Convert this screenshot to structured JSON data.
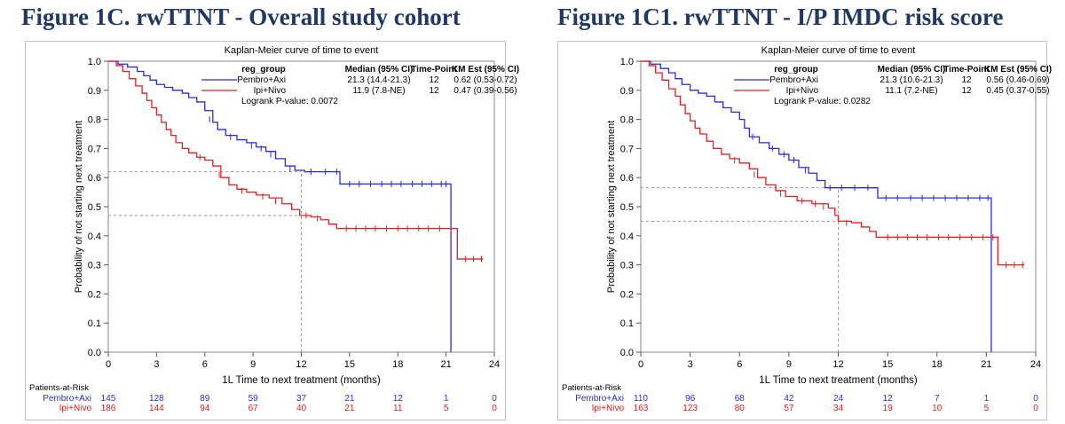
{
  "chart_data": [
    {
      "type": "line",
      "figure_title": "Figure 1C. rwTTNT - Overall study cohort",
      "title": "Kaplan-Meier curve of time to event",
      "xlabel": "1L Time to next treatment (months)",
      "ylabel": "Probability of not starting next treatment",
      "xlim": [
        0,
        24
      ],
      "ylim": [
        0,
        1.0
      ],
      "xticks": [
        "0",
        "3",
        "6",
        "9",
        "12",
        "15",
        "18",
        "21",
        "24"
      ],
      "yticks": [
        "0.0",
        "0.1",
        "0.2",
        "0.3",
        "0.4",
        "0.5",
        "0.6",
        "0.7",
        "0.8",
        "0.9",
        "1.0"
      ],
      "legend": {
        "headers": [
          "reg_group",
          "Median (95% CI)",
          "Time-Point",
          "KM Est (95% CI)"
        ],
        "rows": [
          {
            "group": "Pembro+Axi",
            "median": "21.3 (14.4-21.3)",
            "timepoint": "12",
            "km": "0.62 (0.53-0.72)"
          },
          {
            "group": "Ipi+Nivo",
            "median": "11.9 (7.8-NE)",
            "timepoint": "12",
            "km": "0.47 (0.39-0.56)"
          }
        ],
        "pvalue": "Logrank P-value: 0.0072"
      },
      "reference_lines": {
        "x": 12,
        "y": [
          0.62,
          0.47
        ]
      },
      "series": [
        {
          "name": "Pembro+Axi",
          "color": "#2a2ae0",
          "points": [
            [
              0,
              1.0
            ],
            [
              0.6,
              0.99
            ],
            [
              1.2,
              0.98
            ],
            [
              1.8,
              0.965
            ],
            [
              2.2,
              0.95
            ],
            [
              2.6,
              0.935
            ],
            [
              3.0,
              0.92
            ],
            [
              3.5,
              0.91
            ],
            [
              4.0,
              0.9
            ],
            [
              4.6,
              0.89
            ],
            [
              5.0,
              0.875
            ],
            [
              5.5,
              0.86
            ],
            [
              6.0,
              0.83
            ],
            [
              6.5,
              0.79
            ],
            [
              6.8,
              0.765
            ],
            [
              7.3,
              0.745
            ],
            [
              8.0,
              0.73
            ],
            [
              8.6,
              0.72
            ],
            [
              9.2,
              0.705
            ],
            [
              9.8,
              0.69
            ],
            [
              10.4,
              0.665
            ],
            [
              11.0,
              0.64
            ],
            [
              11.6,
              0.625
            ],
            [
              12.2,
              0.62
            ],
            [
              13.0,
              0.62
            ],
            [
              14.3,
              0.62
            ],
            [
              14.4,
              0.578
            ],
            [
              21.3,
              0.578
            ],
            [
              21.3,
              0.0
            ]
          ],
          "censor": [
            [
              6.3,
              0.8
            ],
            [
              7.6,
              0.74
            ],
            [
              8.9,
              0.71
            ],
            [
              9.5,
              0.7
            ],
            [
              10.1,
              0.68
            ],
            [
              11.3,
              0.63
            ],
            [
              12.6,
              0.62
            ],
            [
              13.5,
              0.62
            ],
            [
              14.2,
              0.62
            ],
            [
              15.0,
              0.578
            ],
            [
              15.6,
              0.578
            ],
            [
              16.3,
              0.578
            ],
            [
              17.0,
              0.578
            ],
            [
              17.6,
              0.578
            ],
            [
              18.2,
              0.578
            ],
            [
              18.9,
              0.578
            ],
            [
              19.5,
              0.578
            ],
            [
              20.1,
              0.578
            ],
            [
              20.7,
              0.578
            ],
            [
              21.0,
              0.578
            ]
          ],
          "risk": [
            "145",
            "128",
            "89",
            "59",
            "37",
            "21",
            "12",
            "1",
            "0"
          ]
        },
        {
          "name": "Ipi+Nivo",
          "color": "#e02020",
          "points": [
            [
              0,
              1.0
            ],
            [
              0.5,
              0.985
            ],
            [
              0.9,
              0.965
            ],
            [
              1.3,
              0.94
            ],
            [
              1.7,
              0.915
            ],
            [
              2.1,
              0.89
            ],
            [
              2.4,
              0.865
            ],
            [
              2.7,
              0.84
            ],
            [
              3.0,
              0.815
            ],
            [
              3.3,
              0.79
            ],
            [
              3.6,
              0.765
            ],
            [
              3.9,
              0.745
            ],
            [
              4.2,
              0.72
            ],
            [
              4.6,
              0.7
            ],
            [
              5.0,
              0.685
            ],
            [
              5.5,
              0.67
            ],
            [
              6.0,
              0.66
            ],
            [
              6.5,
              0.64
            ],
            [
              7.0,
              0.6
            ],
            [
              7.5,
              0.575
            ],
            [
              8.0,
              0.56
            ],
            [
              8.6,
              0.55
            ],
            [
              9.2,
              0.54
            ],
            [
              10.0,
              0.53
            ],
            [
              10.8,
              0.51
            ],
            [
              11.4,
              0.49
            ],
            [
              11.9,
              0.47
            ],
            [
              12.6,
              0.465
            ],
            [
              13.2,
              0.455
            ],
            [
              13.7,
              0.44
            ],
            [
              14.2,
              0.425
            ],
            [
              21.7,
              0.425
            ],
            [
              21.7,
              0.32
            ],
            [
              23.3,
              0.32
            ]
          ],
          "censor": [
            [
              5.7,
              0.67
            ],
            [
              6.9,
              0.61
            ],
            [
              8.3,
              0.555
            ],
            [
              9.6,
              0.535
            ],
            [
              10.4,
              0.52
            ],
            [
              12.3,
              0.47
            ],
            [
              13.0,
              0.46
            ],
            [
              14.8,
              0.425
            ],
            [
              15.4,
              0.425
            ],
            [
              16.0,
              0.425
            ],
            [
              16.6,
              0.425
            ],
            [
              17.3,
              0.425
            ],
            [
              18.0,
              0.425
            ],
            [
              18.6,
              0.425
            ],
            [
              19.3,
              0.425
            ],
            [
              19.9,
              0.425
            ],
            [
              20.6,
              0.425
            ],
            [
              21.3,
              0.425
            ],
            [
              22.2,
              0.32
            ],
            [
              22.7,
              0.32
            ],
            [
              23.2,
              0.32
            ]
          ],
          "risk": [
            "186",
            "144",
            "94",
            "67",
            "40",
            "21",
            "11",
            "5",
            "0"
          ]
        }
      ],
      "risk_header": "Patients-at-Risk"
    },
    {
      "type": "line",
      "figure_title": "Figure 1C1. rwTTNT - I/P IMDC risk score",
      "title": "Kaplan-Meier curve of time to event",
      "xlabel": "1L Time to next treatment (months)",
      "ylabel": "Probability of not starting next treatment",
      "xlim": [
        0,
        24
      ],
      "ylim": [
        0,
        1.0
      ],
      "xticks": [
        "0",
        "3",
        "6",
        "9",
        "12",
        "15",
        "18",
        "21",
        "24"
      ],
      "yticks": [
        "0.0",
        "0.1",
        "0.2",
        "0.3",
        "0.4",
        "0.5",
        "0.6",
        "0.7",
        "0.8",
        "0.9",
        "1.0"
      ],
      "legend": {
        "headers": [
          "reg_group",
          "Median (95% CI)",
          "Time-Point",
          "KM Est (95% CI)"
        ],
        "rows": [
          {
            "group": "Pembro+Axi",
            "median": "21.3 (10.6-21.3)",
            "timepoint": "12",
            "km": "0.56 (0.46-0.69)"
          },
          {
            "group": "Ipi+Nivo",
            "median": "11.1 (7.2-NE)",
            "timepoint": "12",
            "km": "0.45 (0.37-0.55)"
          }
        ],
        "pvalue": "Logrank P-value: 0.0282"
      },
      "reference_lines": {
        "x": 12,
        "y": [
          0.565,
          0.45
        ]
      },
      "series": [
        {
          "name": "Pembro+Axi",
          "color": "#2a2ae0",
          "points": [
            [
              0,
              1.0
            ],
            [
              0.6,
              0.99
            ],
            [
              1.2,
              0.975
            ],
            [
              1.7,
              0.96
            ],
            [
              2.1,
              0.94
            ],
            [
              2.5,
              0.92
            ],
            [
              3.0,
              0.9
            ],
            [
              3.5,
              0.89
            ],
            [
              4.0,
              0.88
            ],
            [
              4.5,
              0.86
            ],
            [
              5.0,
              0.84
            ],
            [
              5.5,
              0.825
            ],
            [
              6.0,
              0.8
            ],
            [
              6.3,
              0.77
            ],
            [
              6.6,
              0.74
            ],
            [
              7.2,
              0.72
            ],
            [
              7.8,
              0.7
            ],
            [
              8.4,
              0.68
            ],
            [
              9.0,
              0.66
            ],
            [
              9.6,
              0.635
            ],
            [
              10.2,
              0.615
            ],
            [
              10.7,
              0.59
            ],
            [
              11.2,
              0.565
            ],
            [
              12.5,
              0.565
            ],
            [
              14.3,
              0.565
            ],
            [
              14.4,
              0.53
            ],
            [
              21.3,
              0.53
            ],
            [
              21.3,
              0.0
            ]
          ],
          "censor": [
            [
              6.8,
              0.74
            ],
            [
              8.0,
              0.7
            ],
            [
              8.7,
              0.68
            ],
            [
              9.3,
              0.66
            ],
            [
              10.0,
              0.625
            ],
            [
              11.5,
              0.565
            ],
            [
              12.2,
              0.565
            ],
            [
              13.0,
              0.565
            ],
            [
              13.8,
              0.565
            ],
            [
              14.9,
              0.53
            ],
            [
              15.6,
              0.53
            ],
            [
              16.4,
              0.53
            ],
            [
              17.1,
              0.53
            ],
            [
              17.8,
              0.53
            ],
            [
              18.5,
              0.53
            ],
            [
              19.2,
              0.53
            ],
            [
              19.9,
              0.53
            ],
            [
              20.6,
              0.53
            ],
            [
              21.1,
              0.53
            ]
          ],
          "risk": [
            "110",
            "96",
            "68",
            "42",
            "24",
            "12",
            "7",
            "1",
            "0"
          ]
        },
        {
          "name": "Ipi+Nivo",
          "color": "#e02020",
          "points": [
            [
              0,
              1.0
            ],
            [
              0.5,
              0.985
            ],
            [
              0.9,
              0.96
            ],
            [
              1.3,
              0.935
            ],
            [
              1.7,
              0.905
            ],
            [
              2.1,
              0.88
            ],
            [
              2.4,
              0.85
            ],
            [
              2.7,
              0.82
            ],
            [
              3.0,
              0.795
            ],
            [
              3.3,
              0.77
            ],
            [
              3.6,
              0.75
            ],
            [
              4.0,
              0.725
            ],
            [
              4.4,
              0.7
            ],
            [
              4.9,
              0.68
            ],
            [
              5.4,
              0.665
            ],
            [
              6.0,
              0.65
            ],
            [
              6.6,
              0.63
            ],
            [
              7.1,
              0.6
            ],
            [
              7.6,
              0.575
            ],
            [
              8.2,
              0.555
            ],
            [
              8.8,
              0.535
            ],
            [
              9.5,
              0.52
            ],
            [
              10.4,
              0.51
            ],
            [
              11.4,
              0.495
            ],
            [
              11.8,
              0.47
            ],
            [
              12.0,
              0.45
            ],
            [
              12.8,
              0.445
            ],
            [
              13.4,
              0.43
            ],
            [
              13.9,
              0.415
            ],
            [
              14.3,
              0.395
            ],
            [
              21.7,
              0.395
            ],
            [
              21.7,
              0.3
            ],
            [
              23.3,
              0.3
            ]
          ],
          "censor": [
            [
              5.7,
              0.66
            ],
            [
              6.9,
              0.61
            ],
            [
              8.5,
              0.545
            ],
            [
              9.8,
              0.52
            ],
            [
              10.6,
              0.51
            ],
            [
              11.1,
              0.5
            ],
            [
              12.5,
              0.445
            ],
            [
              15.0,
              0.395
            ],
            [
              15.6,
              0.395
            ],
            [
              16.2,
              0.395
            ],
            [
              16.8,
              0.395
            ],
            [
              17.4,
              0.395
            ],
            [
              18.1,
              0.395
            ],
            [
              18.7,
              0.395
            ],
            [
              19.4,
              0.395
            ],
            [
              20.1,
              0.395
            ],
            [
              20.8,
              0.395
            ],
            [
              21.4,
              0.395
            ],
            [
              22.2,
              0.3
            ],
            [
              22.7,
              0.3
            ],
            [
              23.2,
              0.3
            ]
          ],
          "risk": [
            "163",
            "123",
            "80",
            "57",
            "34",
            "19",
            "10",
            "5",
            "0"
          ]
        }
      ],
      "risk_header": "Patients-at-Risk"
    }
  ]
}
